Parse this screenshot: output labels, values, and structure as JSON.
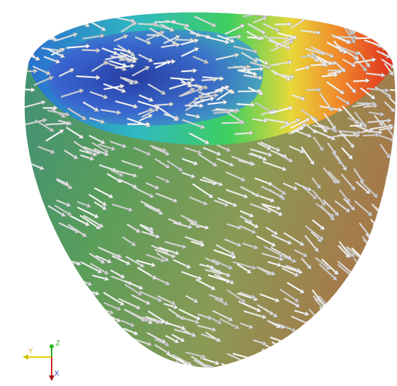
{
  "axes_gizmo": {
    "z": "Z",
    "y": "Y",
    "x": "X"
  }
}
